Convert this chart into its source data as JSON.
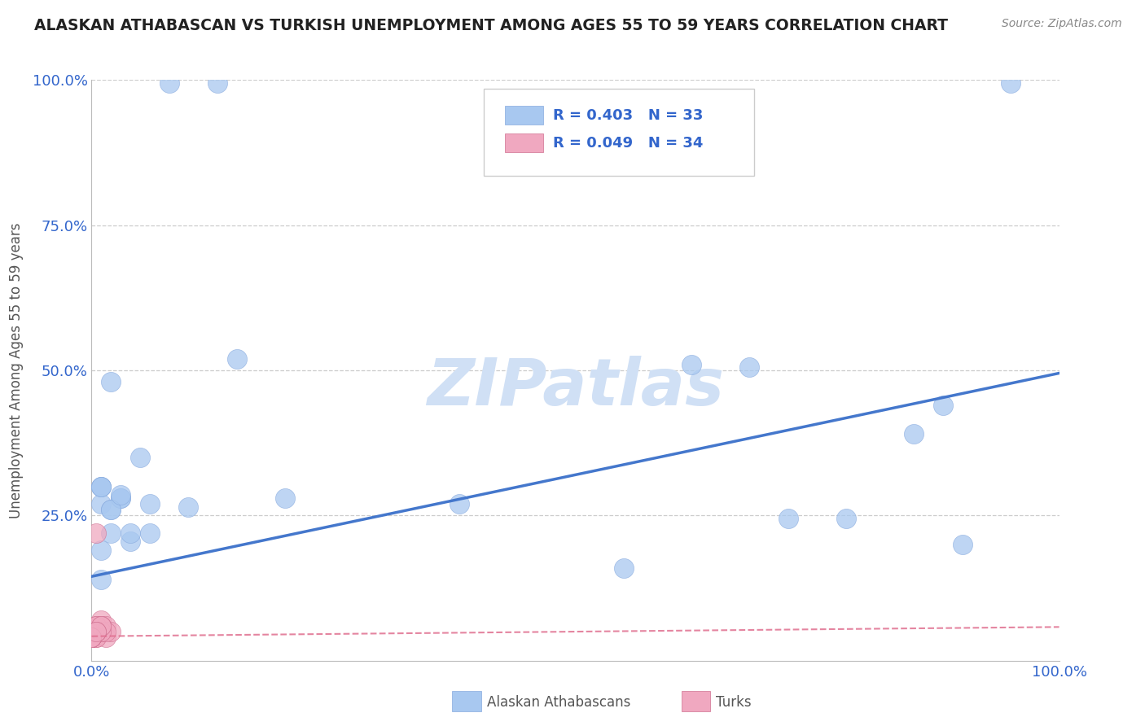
{
  "title": "ALASKAN ATHABASCAN VS TURKISH UNEMPLOYMENT AMONG AGES 55 TO 59 YEARS CORRELATION CHART",
  "source_text": "Source: ZipAtlas.com",
  "ylabel": "Unemployment Among Ages 55 to 59 years",
  "xlim": [
    0.0,
    1.0
  ],
  "ylim": [
    0.0,
    1.0
  ],
  "xticks": [
    0.0,
    0.25,
    0.5,
    0.75,
    1.0
  ],
  "xticklabels": [
    "0.0%",
    "",
    "",
    "",
    "100.0%"
  ],
  "yticks": [
    0.0,
    0.25,
    0.5,
    0.75,
    1.0
  ],
  "yticklabels": [
    "",
    "25.0%",
    "50.0%",
    "75.0%",
    "100.0%"
  ],
  "blue_R": 0.403,
  "blue_N": 33,
  "pink_R": 0.049,
  "pink_N": 34,
  "blue_label": "Alaskan Athabascans",
  "pink_label": "Turks",
  "blue_color": "#a8c8f0",
  "pink_color": "#f0a8c0",
  "blue_line_color": "#4477cc",
  "pink_line_color": "#e07090",
  "legend_text_color": "#3366cc",
  "watermark": "ZIPatlas",
  "watermark_color": "#d0e0f5",
  "background_color": "#ffffff",
  "title_color": "#222222",
  "axis_label_color": "#555555",
  "tick_label_color": "#3366cc",
  "grid_color": "#cccccc",
  "blue_scatter_x": [
    0.08,
    0.13,
    0.02,
    0.01,
    0.03,
    0.05,
    0.01,
    0.02,
    0.01,
    0.02,
    0.03,
    0.06,
    0.15,
    0.2,
    0.38,
    0.55,
    0.62,
    0.68,
    0.72,
    0.78,
    0.88,
    0.9,
    0.04,
    0.1,
    0.02,
    0.03,
    0.01,
    0.01,
    0.01,
    0.04,
    0.06,
    0.95,
    0.85
  ],
  "blue_scatter_y": [
    0.995,
    0.995,
    0.48,
    0.3,
    0.28,
    0.35,
    0.27,
    0.22,
    0.3,
    0.26,
    0.28,
    0.27,
    0.52,
    0.28,
    0.27,
    0.16,
    0.51,
    0.505,
    0.245,
    0.245,
    0.44,
    0.2,
    0.205,
    0.265,
    0.26,
    0.285,
    0.3,
    0.19,
    0.14,
    0.22,
    0.22,
    0.995,
    0.39
  ],
  "pink_scatter_x": [
    0.0,
    0.005,
    0.005,
    0.01,
    0.01,
    0.015,
    0.015,
    0.02,
    0.0,
    0.005,
    0.01,
    0.005,
    0.01,
    0.005,
    0.0,
    0.005,
    0.01,
    0.015,
    0.0,
    0.005,
    0.0,
    0.005,
    0.01,
    0.0,
    0.005,
    0.01,
    0.005,
    0.0,
    0.005,
    0.01,
    0.0,
    0.005,
    0.0,
    0.005
  ],
  "pink_scatter_y": [
    0.05,
    0.06,
    0.04,
    0.07,
    0.05,
    0.06,
    0.04,
    0.05,
    0.04,
    0.05,
    0.06,
    0.04,
    0.05,
    0.06,
    0.04,
    0.22,
    0.05,
    0.05,
    0.04,
    0.05,
    0.04,
    0.06,
    0.05,
    0.04,
    0.05,
    0.06,
    0.05,
    0.04,
    0.05,
    0.06,
    0.04,
    0.05,
    0.04,
    0.05
  ],
  "blue_line_x": [
    0.0,
    1.0
  ],
  "blue_line_y": [
    0.145,
    0.495
  ],
  "pink_line_x": [
    0.0,
    1.0
  ],
  "pink_line_y": [
    0.042,
    0.058
  ],
  "grid_yticks": [
    0.25,
    0.5,
    0.75,
    1.0
  ]
}
